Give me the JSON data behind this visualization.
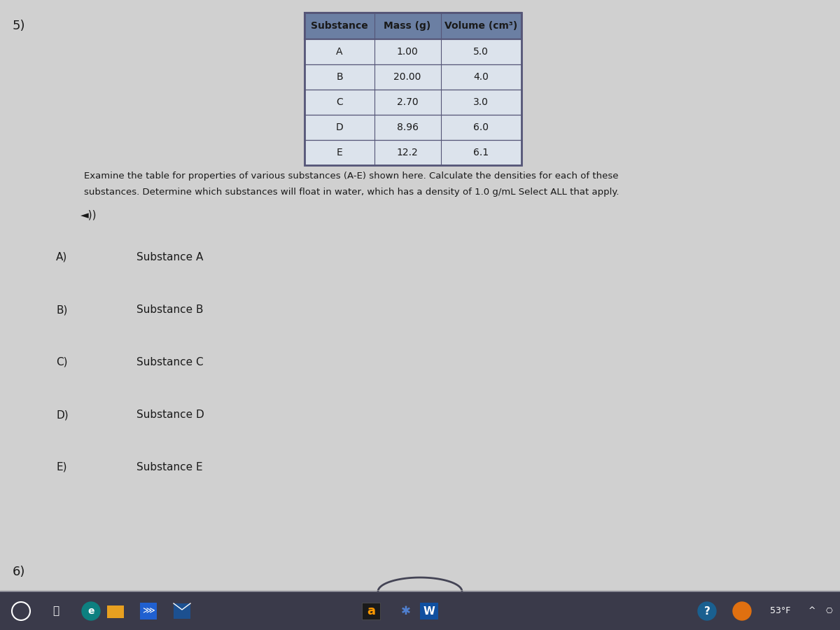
{
  "question_number": "5)",
  "table": {
    "headers": [
      "Substance",
      "Mass (g)",
      "Volume (cm³)"
    ],
    "rows": [
      [
        "A",
        "1.00",
        "5.0"
      ],
      [
        "B",
        "20.00",
        "4.0"
      ],
      [
        "C",
        "2.70",
        "3.0"
      ],
      [
        "D",
        "8.96",
        "6.0"
      ],
      [
        "E",
        "12.2",
        "6.1"
      ]
    ]
  },
  "question_text_line1": "Examine the table for properties of various substances (A-E) shown here. Calculate the densities for each of these",
  "question_text_line2": "substances. Determine which substances will float in water, which has a density of 1.0 g/mL Select ALL that apply.",
  "choices": [
    [
      "A)",
      "Substance A"
    ],
    [
      "B)",
      "Substance B"
    ],
    [
      "C)",
      "Substance C"
    ],
    [
      "D)",
      "Substance D"
    ],
    [
      "E)",
      "Substance E"
    ]
  ],
  "next_question": "6)",
  "background_color": "#d0d0d0",
  "table_header_bg": "#6b7fa3",
  "table_row_bg": "#dce3ec",
  "table_border_color": "#555577",
  "text_color": "#1a1a1a",
  "header_text_color": "#1a1a1a",
  "taskbar_color": "#3a3a4a",
  "font_size_question": 9.5,
  "font_size_table_header": 10,
  "font_size_table_data": 10,
  "font_size_choices": 11,
  "font_size_question_num": 13
}
